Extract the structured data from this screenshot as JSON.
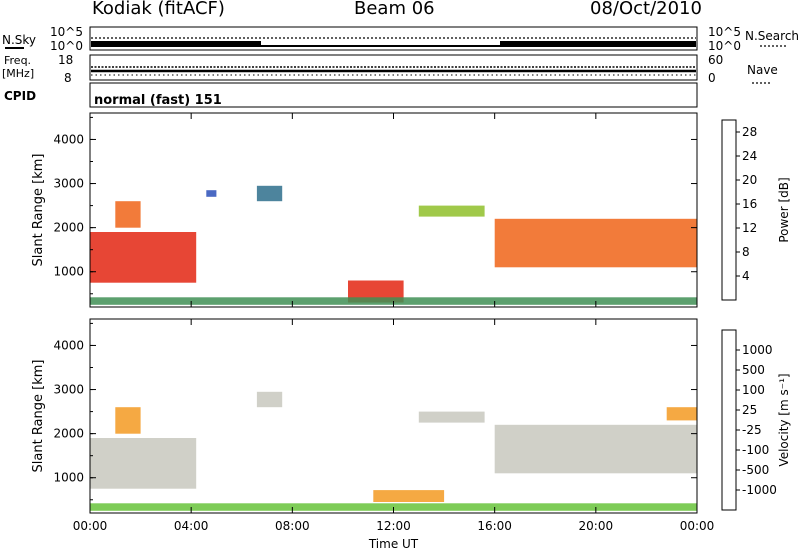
{
  "header": {
    "station": "Kodiak (fitACF)",
    "beam": "Beam 06",
    "date": "08/Oct/2010"
  },
  "strip_labels": {
    "nsky": "N.Sky",
    "nsky_hi": "10^5",
    "nsky_lo": "10^0",
    "nsearch": "N.Search",
    "nsearch_hi": "10^5",
    "nsearch_lo": "10^0",
    "freq_line1": "Freq.",
    "freq_line2": "[MHz]",
    "freq_hi": "18",
    "freq_lo": "8",
    "nave": "Nave",
    "nave_hi": "60",
    "nave_lo": "0",
    "cpid": "CPID",
    "cpid_value": "normal (fast) 151"
  },
  "colors": {
    "power_scale": [
      "#1c2de0",
      "#2a4fb8",
      "#2e6e8c",
      "#3f8f55",
      "#8fbf2a",
      "#e6d21c",
      "#f09a1a",
      "#f06418",
      "#e32612"
    ],
    "velocity_scale": [
      "#e41b1b",
      "#f0701b",
      "#f39a22",
      "#f5c76a",
      "#c8c8be",
      "#c8c8be",
      "#67c33a",
      "#2f8e3f",
      "#2e5fa8",
      "#2a3ec0"
    ]
  },
  "chart_data": [
    {
      "type": "heatmap",
      "title": "",
      "xlabel": "Time UT",
      "ylabel": "Slant Range [km]",
      "x_ticks": [
        "00:00",
        "04:00",
        "08:00",
        "12:00",
        "16:00",
        "20:00",
        "00:00"
      ],
      "y_ticks": [
        "1000",
        "2000",
        "3000",
        "4000"
      ],
      "xlim_hours": [
        0,
        24
      ],
      "ylim_km": [
        200,
        4600
      ],
      "colorbar": {
        "label": "Power [dB]",
        "ticks": [
          "4",
          "8",
          "12",
          "16",
          "20",
          "24",
          "28"
        ],
        "range": [
          0,
          30
        ]
      },
      "echo_regions": [
        {
          "t0": 0.0,
          "t1": 4.2,
          "r0": 750,
          "r1": 1900,
          "value": 28
        },
        {
          "t0": 1.0,
          "t1": 2.0,
          "r0": 2000,
          "r1": 2600,
          "value": 26
        },
        {
          "t0": 4.6,
          "t1": 5.0,
          "r0": 2700,
          "r1": 2850,
          "value": 6
        },
        {
          "t0": 6.6,
          "t1": 7.6,
          "r0": 2600,
          "r1": 2950,
          "value": 9
        },
        {
          "t0": 10.2,
          "t1": 12.4,
          "r0": 300,
          "r1": 800,
          "value": 28
        },
        {
          "t0": 13.0,
          "t1": 15.6,
          "r0": 2250,
          "r1": 2500,
          "value": 14
        },
        {
          "t0": 16.0,
          "t1": 24.0,
          "r0": 1100,
          "r1": 2200,
          "value": 24
        },
        {
          "t0": 0.0,
          "t1": 24.0,
          "r0": 250,
          "r1": 420,
          "value": 10
        }
      ]
    },
    {
      "type": "heatmap",
      "title": "",
      "xlabel": "Time UT",
      "ylabel": "Slant Range [km]",
      "x_ticks": [
        "00:00",
        "04:00",
        "08:00",
        "12:00",
        "16:00",
        "20:00",
        "00:00"
      ],
      "y_ticks": [
        "1000",
        "2000",
        "3000",
        "4000"
      ],
      "xlim_hours": [
        0,
        24
      ],
      "ylim_km": [
        200,
        4600
      ],
      "colorbar": {
        "label": "Velocity [m s⁻¹]",
        "ticks": [
          "1000",
          "500",
          "100",
          "25",
          "-25",
          "-100",
          "-500",
          "-1000"
        ],
        "range": [
          -1000,
          1000
        ]
      },
      "echo_regions": [
        {
          "t0": 0.0,
          "t1": 4.2,
          "r0": 750,
          "r1": 1900,
          "value": 0
        },
        {
          "t0": 1.0,
          "t1": 2.0,
          "r0": 2000,
          "r1": 2600,
          "value": -300
        },
        {
          "t0": 6.6,
          "t1": 7.6,
          "r0": 2600,
          "r1": 2950,
          "value": 0
        },
        {
          "t0": 11.2,
          "t1": 14.0,
          "r0": 450,
          "r1": 720,
          "value": -120
        },
        {
          "t0": 13.0,
          "t1": 15.6,
          "r0": 2250,
          "r1": 2500,
          "value": 0
        },
        {
          "t0": 16.0,
          "t1": 24.0,
          "r0": 1100,
          "r1": 2200,
          "value": 0
        },
        {
          "t0": 22.8,
          "t1": 24.0,
          "r0": 2300,
          "r1": 2600,
          "value": -300
        },
        {
          "t0": 0.0,
          "t1": 24.0,
          "r0": 250,
          "r1": 420,
          "value": 30
        }
      ]
    }
  ]
}
